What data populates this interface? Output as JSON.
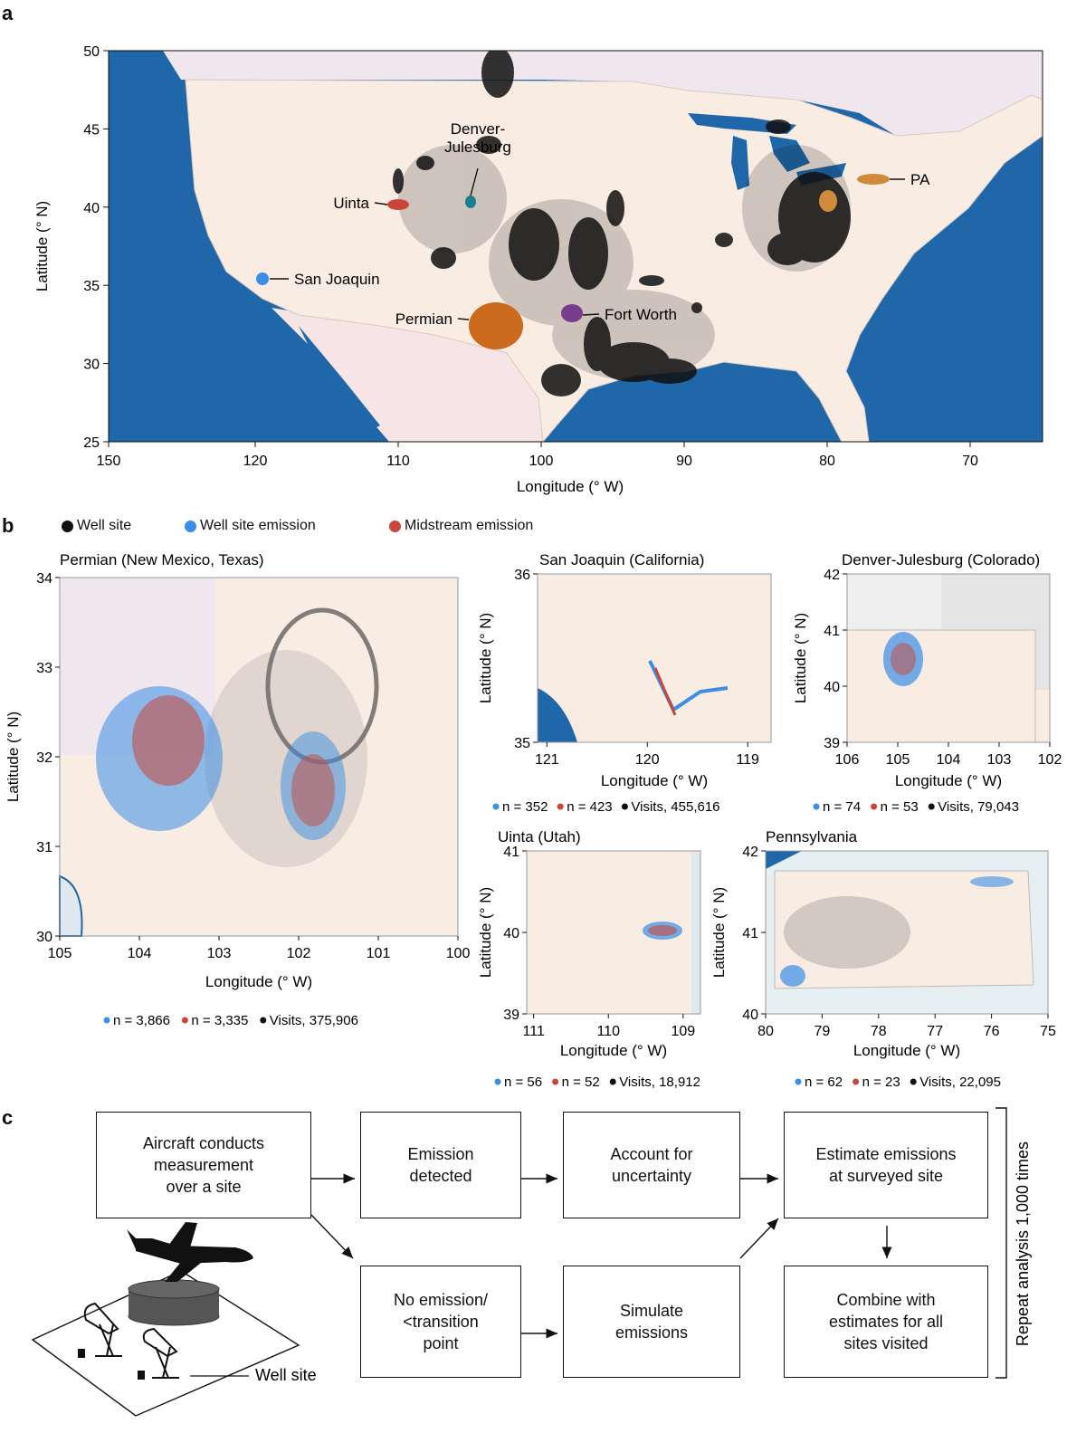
{
  "panels": {
    "a": "a",
    "b": "b",
    "c": "c"
  },
  "colors": {
    "ocean": "#1f67a8",
    "land": "#f9ece3",
    "neighbor": "#efe6ee",
    "wellsite": "#111111",
    "wellsite_emission": "#3a8ee6",
    "midstream_emission": "#c8473a",
    "permian": "#cc6a1e",
    "denver": "#1a7f8c",
    "uinta": "#c8473a",
    "sanjoaquin": "#3a8ee6",
    "fortworth": "#7a3d8c",
    "pa": "#cf8a3a"
  },
  "map_a": {
    "xlabel": "Longitude (° W)",
    "ylabel": "Latitude (° N)",
    "xticks": [
      "150",
      "120",
      "110",
      "100",
      "90",
      "80",
      "70"
    ],
    "yticks": [
      "50",
      "45",
      "40",
      "35",
      "30",
      "25"
    ],
    "basins": [
      {
        "label": "Denver-\nJulesburg",
        "lon": 104.8,
        "lat": 40.2
      },
      {
        "label": "Uinta",
        "lon": 110.0,
        "lat": 40.2
      },
      {
        "label": "San Joaquin",
        "lon": 119.4,
        "lat": 35.5
      },
      {
        "label": "Permian",
        "lon": 102.5,
        "lat": 32.0
      },
      {
        "label": "Fort Worth",
        "lon": 97.8,
        "lat": 33.0
      },
      {
        "label": "PA",
        "lon": 77.5,
        "lat": 41.6
      }
    ]
  },
  "legend_b": {
    "wellsite": "Well site",
    "wellsite_emission": "Well site emission",
    "midstream_emission": "Midstream emission"
  },
  "subplots": [
    {
      "id": "permian",
      "title": "Permian (New Mexico, Texas)",
      "xticks": [
        "105",
        "104",
        "103",
        "102",
        "101",
        "100"
      ],
      "yticks": [
        "34",
        "33",
        "32",
        "31",
        "30"
      ],
      "xlabel": "Longitude (° W)",
      "ylabel": "Latitude (° N)",
      "stats": {
        "n_well": "n = 3,866",
        "n_mid": "n = 3,335",
        "visits": "Visits, 375,906"
      }
    },
    {
      "id": "sanjoaquin",
      "title": "San Joaquin (California)",
      "xticks": [
        "121",
        "120",
        "119"
      ],
      "yticks": [
        "36",
        "35"
      ],
      "xlabel": "Longitude (° W)",
      "ylabel": "Latitude (° N)",
      "stats": {
        "n_well": "n = 352",
        "n_mid": "n = 423",
        "visits": "Visits, 455,616"
      }
    },
    {
      "id": "denver",
      "title": "Denver-Julesburg (Colorado)",
      "xticks": [
        "106",
        "105",
        "104",
        "103",
        "102"
      ],
      "yticks": [
        "42",
        "41",
        "40",
        "39"
      ],
      "xlabel": "Longitude (° W)",
      "ylabel": "Latitude (° N)",
      "stats": {
        "n_well": "n = 74",
        "n_mid": "n = 53",
        "visits": "Visits, 79,043"
      }
    },
    {
      "id": "uinta",
      "title": "Uinta (Utah)",
      "xticks": [
        "111",
        "110",
        "109"
      ],
      "yticks": [
        "41",
        "40",
        "39"
      ],
      "xlabel": "Longitude (° W)",
      "ylabel": "Latitude (° N)",
      "stats": {
        "n_well": "n = 56",
        "n_mid": "n = 52",
        "visits": "Visits, 18,912"
      }
    },
    {
      "id": "pa",
      "title": "Pennsylvania",
      "xticks": [
        "80",
        "79",
        "78",
        "77",
        "76",
        "75"
      ],
      "yticks": [
        "42",
        "41",
        "40"
      ],
      "xlabel": "Longitude (° W)",
      "ylabel": "Latitude (° N)",
      "stats": {
        "n_well": "n = 62",
        "n_mid": "n = 23",
        "visits": "Visits, 22,095"
      }
    }
  ],
  "flowchart": {
    "aircraft": "Aircraft conducts\nmeasurement\nover a site",
    "detected": "Emission\ndetected",
    "uncertainty": "Account for\nuncertainty",
    "estimate": "Estimate emissions\nat surveyed site",
    "no_emission": "No emission/\n<transition\npoint",
    "simulate": "Simulate\nemissions",
    "combine": "Combine with\nestimates for all\nsites visited",
    "repeat": "Repeat analysis 1,000 times",
    "wellsite_label": "Well site"
  }
}
